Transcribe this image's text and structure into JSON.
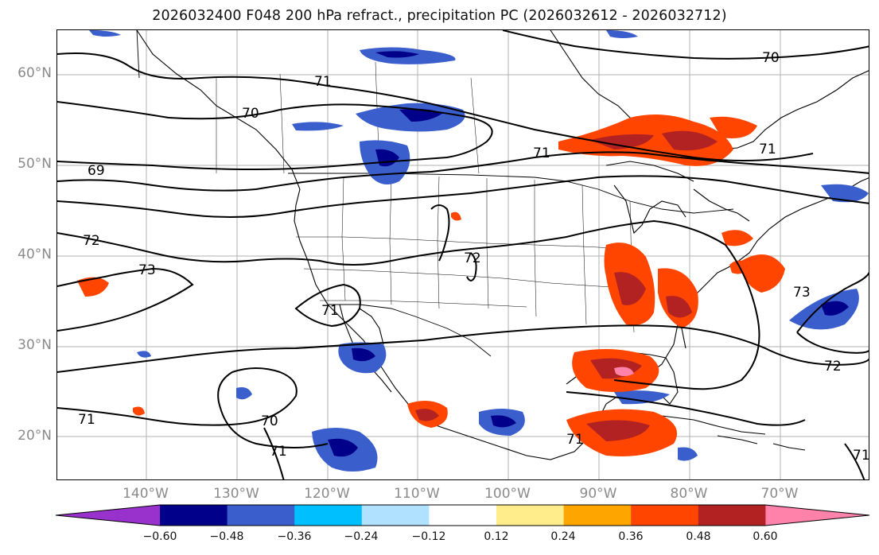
{
  "title": "2026032400 F048 200 hPa refract., precipitation PC (2026032612 - 2026032712)",
  "lat_labels": [
    "60°N",
    "50°N",
    "40°N",
    "30°N",
    "20°N"
  ],
  "lon_labels": [
    "140°W",
    "130°W",
    "120°W",
    "110°W",
    "100°W",
    "90°W",
    "80°W",
    "70°W"
  ],
  "contour_labels": [
    "71",
    "70",
    "69",
    "72",
    "73",
    "71",
    "72",
    "71",
    "70",
    "71",
    "71",
    "72",
    "73",
    "70",
    "71",
    "71",
    "71"
  ],
  "colorbar": {
    "ticks": [
      "−0.60",
      "−0.48",
      "−0.36",
      "−0.24",
      "−0.12",
      "0.12",
      "0.24",
      "0.36",
      "0.48",
      "0.60"
    ],
    "colors": [
      "#9932cc",
      "#00008b",
      "#3a5fcd",
      "#00bfff",
      "#b0e2ff",
      "#ffffff",
      "#ffec8b",
      "#ffa500",
      "#ff4500",
      "#b22222",
      "#ff82ab"
    ]
  }
}
